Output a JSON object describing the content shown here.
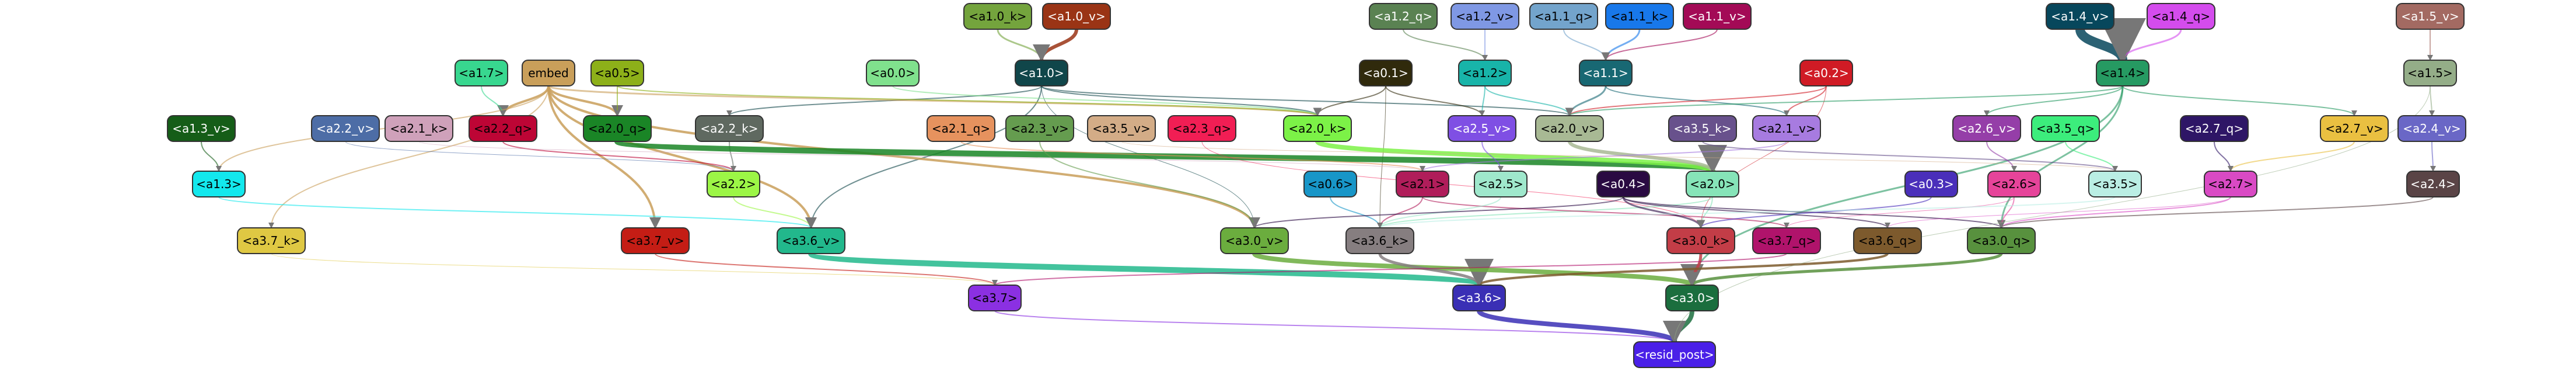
{
  "nodes": [
    {
      "id": "a1.0_k",
      "label": "<a1.0_k>",
      "fill": "#74a43d",
      "text": "#000"
    },
    {
      "id": "a1.0_v",
      "label": "<a1.0_v>",
      "fill": "#9a3415",
      "text": "#fff"
    },
    {
      "id": "a1.2_q",
      "label": "<a1.2_q>",
      "fill": "#5a8252",
      "text": "#fff"
    },
    {
      "id": "a1.2_v",
      "label": "<a1.2_v>",
      "fill": "#7f98e4",
      "text": "#000"
    },
    {
      "id": "a1.1_q",
      "label": "<a1.1_q>",
      "fill": "#73a4cc",
      "text": "#000"
    },
    {
      "id": "a1.1_k",
      "label": "<a1.1_k>",
      "fill": "#1878ea",
      "text": "#000"
    },
    {
      "id": "a1.1_v",
      "label": "<a1.1_v>",
      "fill": "#a30a56",
      "text": "#fff"
    },
    {
      "id": "a1.4_v",
      "label": "<a1.4_v>",
      "fill": "#07475c",
      "text": "#fff"
    },
    {
      "id": "a1.4_q",
      "label": "<a1.4_q>",
      "fill": "#d44ced",
      "text": "#000"
    },
    {
      "id": "a1.5_v",
      "label": "<a1.5_v>",
      "fill": "#a36a62",
      "text": "#fff"
    },
    {
      "id": "a1.7",
      "label": "<a1.7>",
      "fill": "#38d78f",
      "text": "#000"
    },
    {
      "id": "embed",
      "label": "embed",
      "fill": "#c99f5a",
      "text": "#000"
    },
    {
      "id": "a0.5",
      "label": "<a0.5>",
      "fill": "#8db019",
      "text": "#000"
    },
    {
      "id": "a0.0",
      "label": "<a0.0>",
      "fill": "#80e18d",
      "text": "#000"
    },
    {
      "id": "a1.0",
      "label": "<a1.0>",
      "fill": "#10464a",
      "text": "#fff"
    },
    {
      "id": "a0.1",
      "label": "<a0.1>",
      "fill": "#302a0c",
      "text": "#fff"
    },
    {
      "id": "a1.2",
      "label": "<a1.2>",
      "fill": "#18b4a9",
      "text": "#000"
    },
    {
      "id": "a1.1",
      "label": "<a1.1>",
      "fill": "#186873",
      "text": "#fff"
    },
    {
      "id": "a0.2",
      "label": "<a0.2>",
      "fill": "#d01b25",
      "text": "#fff"
    },
    {
      "id": "a1.4",
      "label": "<a1.4>",
      "fill": "#269a62",
      "text": "#000"
    },
    {
      "id": "a1.5",
      "label": "<a1.5>",
      "fill": "#94ad88",
      "text": "#000"
    },
    {
      "id": "a1.3_v",
      "label": "<a1.3_v>",
      "fill": "#155d18",
      "text": "#fff"
    },
    {
      "id": "a2.2_v",
      "label": "<a2.2_v>",
      "fill": "#4d6da6",
      "text": "#fff"
    },
    {
      "id": "a2.1_k",
      "label": "<a2.1_k>",
      "fill": "#cfa1ba",
      "text": "#000"
    },
    {
      "id": "a2.2_q",
      "label": "<a2.2_q>",
      "fill": "#bd0535",
      "text": "#000"
    },
    {
      "id": "a2.0_q",
      "label": "<a2.0_q>",
      "fill": "#1a8526",
      "text": "#000"
    },
    {
      "id": "a2.2_k",
      "label": "<a2.2_k>",
      "fill": "#5f6960",
      "text": "#fff"
    },
    {
      "id": "a2.1_q",
      "label": "<a2.1_q>",
      "fill": "#e6925e",
      "text": "#000"
    },
    {
      "id": "a2.3_v",
      "label": "<a2.3_v>",
      "fill": "#659c4f",
      "text": "#000"
    },
    {
      "id": "a3.5_v",
      "label": "<a3.5_v>",
      "fill": "#d3ac87",
      "text": "#000"
    },
    {
      "id": "a2.3_q",
      "label": "<a2.3_q>",
      "fill": "#f11e54",
      "text": "#000"
    },
    {
      "id": "a2.0_k",
      "label": "<a2.0_k>",
      "fill": "#7cf247",
      "text": "#000"
    },
    {
      "id": "a2.5_v",
      "label": "<a2.5_v>",
      "fill": "#7f4fe4",
      "text": "#fff"
    },
    {
      "id": "a2.0_v",
      "label": "<a2.0_v>",
      "fill": "#a8b994",
      "text": "#000"
    },
    {
      "id": "a3.5_k",
      "label": "<a3.5_k>",
      "fill": "#68518c",
      "text": "#fff"
    },
    {
      "id": "a2.1_v",
      "label": "<a2.1_v>",
      "fill": "#a77be0",
      "text": "#000"
    },
    {
      "id": "a2.6_v",
      "label": "<a2.6_v>",
      "fill": "#953ea8",
      "text": "#fff"
    },
    {
      "id": "a3.5_q",
      "label": "<a3.5_q>",
      "fill": "#3ced7c",
      "text": "#000"
    },
    {
      "id": "a2.7_q",
      "label": "<a2.7_q>",
      "fill": "#2e1666",
      "text": "#fff"
    },
    {
      "id": "a2.7_v",
      "label": "<a2.7_v>",
      "fill": "#eac041",
      "text": "#000"
    },
    {
      "id": "a2.4_v",
      "label": "<a2.4_v>",
      "fill": "#6a67c6",
      "text": "#fff"
    },
    {
      "id": "a1.3",
      "label": "<a1.3>",
      "fill": "#13e8ed",
      "text": "#000"
    },
    {
      "id": "a2.2",
      "label": "<a2.2>",
      "fill": "#9cf646",
      "text": "#000"
    },
    {
      "id": "a0.6",
      "label": "<a0.6>",
      "fill": "#1896c8",
      "text": "#000"
    },
    {
      "id": "a2.1",
      "label": "<a2.1>",
      "fill": "#b01d5a",
      "text": "#000"
    },
    {
      "id": "a2.5",
      "label": "<a2.5>",
      "fill": "#9fe8cc",
      "text": "#000"
    },
    {
      "id": "a0.4",
      "label": "<a0.4>",
      "fill": "#2a0a42",
      "text": "#fff"
    },
    {
      "id": "a2.0",
      "label": "<a2.0>",
      "fill": "#86e4b8",
      "text": "#000"
    },
    {
      "id": "a0.3",
      "label": "<a0.3>",
      "fill": "#4a2fba",
      "text": "#fff"
    },
    {
      "id": "a2.6",
      "label": "<a2.6>",
      "fill": "#e6449a",
      "text": "#000"
    },
    {
      "id": "a3.5",
      "label": "<a3.5>",
      "fill": "#baeee4",
      "text": "#000"
    },
    {
      "id": "a2.7",
      "label": "<a2.7>",
      "fill": "#d94ac4",
      "text": "#000"
    },
    {
      "id": "a2.4",
      "label": "<a2.4>",
      "fill": "#5a4446",
      "text": "#fff"
    },
    {
      "id": "a3.7_k",
      "label": "<a3.7_k>",
      "fill": "#dfc843",
      "text": "#000"
    },
    {
      "id": "a3.7_v",
      "label": "<a3.7_v>",
      "fill": "#c41d15",
      "text": "#000"
    },
    {
      "id": "a3.6_v",
      "label": "<a3.6_v>",
      "fill": "#22b88c",
      "text": "#000"
    },
    {
      "id": "a3.0_v",
      "label": "<a3.0_v>",
      "fill": "#6bad3e",
      "text": "#000"
    },
    {
      "id": "a3.6_k",
      "label": "<a3.6_k>",
      "fill": "#867e80",
      "text": "#000"
    },
    {
      "id": "a3.0_k",
      "label": "<a3.0_k>",
      "fill": "#c33d47",
      "text": "#000"
    },
    {
      "id": "a3.7_q",
      "label": "<a3.7_q>",
      "fill": "#b0136b",
      "text": "#000"
    },
    {
      "id": "a3.6_q",
      "label": "<a3.6_q>",
      "fill": "#7d5a2d",
      "text": "#000"
    },
    {
      "id": "a3.0_q",
      "label": "<a3.0_q>",
      "fill": "#58913e",
      "text": "#000"
    },
    {
      "id": "a3.7",
      "label": "<a3.7>",
      "fill": "#8b30e2",
      "text": "#000"
    },
    {
      "id": "a3.6",
      "label": "<a3.6>",
      "fill": "#3a2fb5",
      "text": "#fff"
    },
    {
      "id": "a3.0",
      "label": "<a3.0>",
      "fill": "#1b6e3e",
      "text": "#fff"
    },
    {
      "id": "resid_post",
      "label": "<resid_post>",
      "fill": "#4a20e8",
      "text": "#fff"
    }
  ]
}
